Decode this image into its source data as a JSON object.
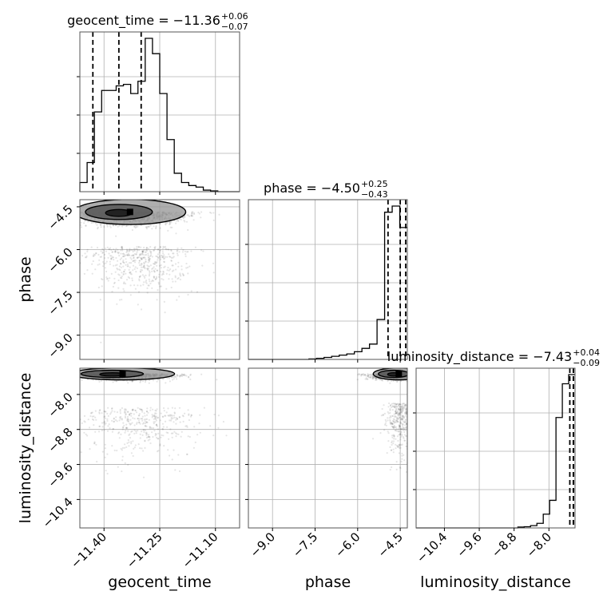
{
  "chart_data": {
    "type": "corner",
    "grid": true,
    "parameters": [
      {
        "name": "geocent_time",
        "xlabel": "geocent_time",
        "ylabel": "",
        "title": "geocent_time = −11.36",
        "title_upper": "+0.06",
        "title_lower": "−0.07",
        "range": [
          -11.465,
          -11.035
        ],
        "ticks": [
          -11.4,
          -11.25,
          -11.1
        ],
        "tick_labels": [
          "−11.40",
          "−11.25",
          "−11.10"
        ],
        "quantiles": [
          -11.43,
          -11.36,
          -11.3
        ],
        "hist": [
          0.06,
          0.19,
          0.52,
          0.66,
          0.66,
          0.69,
          0.7,
          0.64,
          0.72,
          1.0,
          0.9,
          0.64,
          0.34,
          0.12,
          0.06,
          0.04,
          0.03,
          0.01,
          0.005,
          0,
          0,
          0
        ]
      },
      {
        "name": "phase",
        "xlabel": "phase",
        "ylabel": "phase",
        "title": "phase = −4.50",
        "title_upper": "+0.25",
        "title_lower": "−0.43",
        "range": [
          -9.85,
          -4.25
        ],
        "ticks": [
          -9.0,
          -7.5,
          -6.0,
          -4.5
        ],
        "tick_labels": [
          "−9.0",
          "−7.5",
          "−6.0",
          "−4.5"
        ],
        "quantiles": [
          -4.93,
          -4.5,
          -4.25
        ],
        "hist": [
          0,
          0,
          0,
          0,
          0,
          0,
          0,
          0,
          0.003,
          0.007,
          0.013,
          0.02,
          0.028,
          0.036,
          0.05,
          0.072,
          0.1,
          0.26,
          0.96,
          1.0,
          0.86
        ]
      },
      {
        "name": "luminosity_distance",
        "xlabel": "luminosity_distance",
        "ylabel": "luminosity_distance",
        "title": "luminosity_distance = −7.43",
        "title_upper": "+0.04",
        "title_lower": "−0.09",
        "range": [
          -11.05,
          -7.4
        ],
        "ticks": [
          -10.4,
          -9.6,
          -8.8,
          -8.0
        ],
        "tick_labels": [
          "−10.4",
          "−9.6",
          "−8.8",
          "−8.0"
        ],
        "quantiles": [
          -7.52,
          -7.44,
          -7.4
        ],
        "hist": [
          0,
          0,
          0,
          0,
          0,
          0,
          0,
          0,
          0,
          0,
          0,
          0,
          0,
          0,
          0,
          0,
          0.006,
          0.008,
          0.015,
          0.03,
          0.09,
          0.18,
          0.72,
          0.94,
          1.0
        ]
      }
    ],
    "samples": {
      "phase_vs_geocent_time": {
        "core": {
          "center": [
            -11.33,
            -4.68
          ],
          "spread": [
            0.075,
            0.22
          ],
          "count": 1300
        },
        "tail": {
          "center": [
            -11.3,
            -5.9
          ],
          "spread": [
            0.07,
            0.8
          ],
          "count": 520
        }
      },
      "luminosity_distance_vs_geocent_time": {
        "core": {
          "center": [
            -11.35,
            -7.53
          ],
          "spread": [
            0.07,
            0.06
          ],
          "count": 1300
        },
        "tail": {
          "center": [
            -11.3,
            -8.3
          ],
          "spread": [
            0.08,
            0.55
          ],
          "count": 420
        }
      },
      "luminosity_distance_vs_phase": {
        "core": {
          "center": [
            -4.55,
            -7.53
          ],
          "spread": [
            0.45,
            0.06
          ],
          "count": 1300
        },
        "tail": {
          "center": [
            -4.45,
            -8.2
          ],
          "spread": [
            0.28,
            0.55
          ],
          "count": 420
        }
      }
    },
    "colors": {
      "line": "#000000",
      "grid": "#b0b0b0",
      "points": "#000000",
      "background": "#ffffff"
    }
  }
}
